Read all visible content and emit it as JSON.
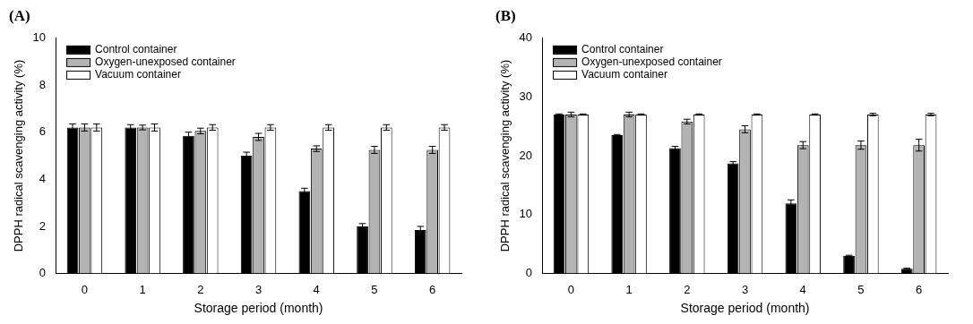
{
  "chart_data": [
    {
      "type": "bar",
      "title": "(A)",
      "x_label": "Storage period (month)",
      "y_label": "DPPH radical scavenging activity (%)",
      "categories": [
        "0",
        "1",
        "2",
        "3",
        "4",
        "5",
        "6"
      ],
      "series": [
        {
          "name": "Control container",
          "color": "#000000",
          "values": [
            6.2,
            6.2,
            5.85,
            5.0,
            3.5,
            2.0,
            1.85
          ],
          "errors": [
            0.15,
            0.12,
            0.15,
            0.15,
            0.12,
            0.12,
            0.15
          ]
        },
        {
          "name": "Oxygen-unexposed container",
          "color": "#b3b3b3",
          "values": [
            6.2,
            6.2,
            6.05,
            5.8,
            5.3,
            5.25,
            5.25
          ],
          "errors": [
            0.15,
            0.1,
            0.12,
            0.15,
            0.12,
            0.15,
            0.15
          ]
        },
        {
          "name": "Vacuum container",
          "color": "#ffffff",
          "values": [
            6.2,
            6.2,
            6.2,
            6.2,
            6.2,
            6.2,
            6.2
          ],
          "errors": [
            0.15,
            0.15,
            0.12,
            0.12,
            0.12,
            0.12,
            0.12
          ]
        }
      ],
      "ylim": [
        0,
        10
      ],
      "yticks": [
        0,
        2,
        4,
        6,
        8,
        10
      ],
      "grid": false,
      "legend": "upper left"
    },
    {
      "type": "bar",
      "title": "(B)",
      "x_label": "Storage period (month)",
      "y_label": "DPPH radical scavenging activity (%)",
      "categories": [
        "0",
        "1",
        "2",
        "3",
        "4",
        "5",
        "6"
      ],
      "series": [
        {
          "name": "Control container",
          "color": "#000000",
          "values": [
            27.0,
            23.5,
            21.3,
            18.7,
            11.9,
            3.0,
            0.8
          ],
          "errors": [
            0.1,
            0.1,
            0.3,
            0.3,
            0.6,
            0.1,
            0.1
          ]
        },
        {
          "name": "Oxygen-unexposed container",
          "color": "#b3b3b3",
          "values": [
            27.0,
            27.0,
            25.8,
            24.5,
            21.8,
            21.8,
            21.8
          ],
          "errors": [
            0.4,
            0.4,
            0.4,
            0.6,
            0.6,
            0.7,
            1.0
          ]
        },
        {
          "name": "Vacuum container",
          "color": "#ffffff",
          "values": [
            27.0,
            27.0,
            27.0,
            27.0,
            27.0,
            27.0,
            27.0
          ],
          "errors": [
            0.1,
            0.1,
            0.1,
            0.1,
            0.1,
            0.2,
            0.2
          ]
        }
      ],
      "ylim": [
        0,
        40
      ],
      "yticks": [
        0,
        10,
        20,
        30,
        40
      ],
      "grid": false,
      "legend": "upper left"
    }
  ]
}
